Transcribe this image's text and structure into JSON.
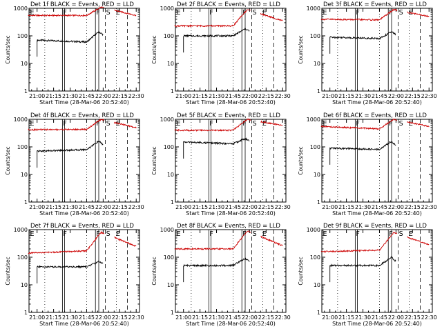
{
  "chart_data": [
    {
      "type": "line",
      "title": "Det 1f BLACK = Events, RED = LLD",
      "ylabel": "Counts/sec",
      "xlabel": "Start Time (28-Mar-06 20:52:40)",
      "x_ticks": [
        "21:00",
        "21:15",
        "21:30",
        "21:45",
        "22:00",
        "22:15",
        "22:30"
      ],
      "xlim": [
        "20:52:40",
        "22:33"
      ],
      "ylim": [
        1,
        1000
      ],
      "y_scale": "log",
      "y_ticks": [
        "1",
        "10",
        "100",
        "1000"
      ],
      "markers": [
        "E",
        "F",
        "F",
        "S",
        "E"
      ],
      "series": [
        {
          "name": "Events",
          "color": "#000000",
          "values": [
            {
              "x": "21:00",
              "y": 70
            },
            {
              "x": "21:45",
              "y": 60
            },
            {
              "x": "21:56",
              "y": 140
            },
            {
              "x": "22:00",
              "y": 110
            }
          ]
        },
        {
          "name": "LLD",
          "color": "#cc0000",
          "values": [
            {
              "x": "20:52",
              "y": 550
            },
            {
              "x": "21:45",
              "y": 550
            },
            {
              "x": "21:58",
              "y": 1100
            },
            {
              "x": "22:30",
              "y": 550
            }
          ]
        }
      ]
    },
    {
      "type": "line",
      "title": "Det 2f BLACK = Events, RED = LLD",
      "ylabel": "Counts/sec",
      "xlabel": "Start Time (28-Mar-06 20:52:40)",
      "x_ticks": [
        "21:00",
        "21:15",
        "21:30",
        "21:45",
        "22:00",
        "22:15",
        "22:30"
      ],
      "xlim": [
        "20:52:40",
        "22:33"
      ],
      "ylim": [
        1,
        1000
      ],
      "y_scale": "log",
      "y_ticks": [
        "1",
        "10",
        "100",
        "1000"
      ],
      "markers": [
        "E",
        "F",
        "F",
        "S",
        "E"
      ],
      "series": [
        {
          "name": "Events",
          "color": "#000000",
          "values": [
            {
              "x": "21:00",
              "y": 100
            },
            {
              "x": "21:45",
              "y": 100
            },
            {
              "x": "21:56",
              "y": 180
            },
            {
              "x": "22:00",
              "y": 150
            }
          ]
        },
        {
          "name": "LLD",
          "color": "#cc0000",
          "values": [
            {
              "x": "20:52",
              "y": 230
            },
            {
              "x": "21:45",
              "y": 230
            },
            {
              "x": "21:58",
              "y": 900
            },
            {
              "x": "22:30",
              "y": 350
            }
          ]
        }
      ]
    },
    {
      "type": "line",
      "title": "Det 3f BLACK = Events, RED = LLD",
      "ylabel": "Counts/sec",
      "xlabel": "Start Time (28-Mar-06 20:52:40)",
      "x_ticks": [
        "21:00",
        "21:15",
        "21:30",
        "21:45",
        "22:00",
        "22:15",
        "22:30"
      ],
      "xlim": [
        "20:52:40",
        "22:33"
      ],
      "ylim": [
        1,
        1000
      ],
      "y_scale": "log",
      "y_ticks": [
        "1",
        "10",
        "100",
        "1000"
      ],
      "markers": [
        "E",
        "F",
        "F",
        "S",
        "E"
      ],
      "series": [
        {
          "name": "Events",
          "color": "#000000",
          "values": [
            {
              "x": "21:00",
              "y": 90
            },
            {
              "x": "21:45",
              "y": 80
            },
            {
              "x": "21:56",
              "y": 140
            },
            {
              "x": "22:00",
              "y": 110
            }
          ]
        },
        {
          "name": "LLD",
          "color": "#cc0000",
          "values": [
            {
              "x": "20:52",
              "y": 400
            },
            {
              "x": "21:45",
              "y": 380
            },
            {
              "x": "21:58",
              "y": 900
            },
            {
              "x": "22:30",
              "y": 500
            }
          ]
        }
      ]
    },
    {
      "type": "line",
      "title": "Det 4f BLACK = Events, RED = LLD",
      "ylabel": "Counts/sec",
      "xlabel": "Start Time (28-Mar-06 20:52:40)",
      "x_ticks": [
        "21:00",
        "21:15",
        "21:30",
        "21:45",
        "22:00",
        "22:15",
        "22:30"
      ],
      "xlim": [
        "20:52:40",
        "22:33"
      ],
      "ylim": [
        1,
        1000
      ],
      "y_scale": "log",
      "y_ticks": [
        "1",
        "10",
        "100",
        "1000"
      ],
      "markers": [
        "E",
        "F",
        "F",
        "S",
        "E"
      ],
      "series": [
        {
          "name": "Events",
          "color": "#000000",
          "values": [
            {
              "x": "21:00",
              "y": 70
            },
            {
              "x": "21:45",
              "y": 80
            },
            {
              "x": "21:56",
              "y": 160
            },
            {
              "x": "22:00",
              "y": 120
            }
          ]
        },
        {
          "name": "LLD",
          "color": "#cc0000",
          "values": [
            {
              "x": "20:52",
              "y": 420
            },
            {
              "x": "21:45",
              "y": 430
            },
            {
              "x": "21:58",
              "y": 1000
            },
            {
              "x": "22:30",
              "y": 500
            }
          ]
        }
      ]
    },
    {
      "type": "line",
      "title": "Det 5f BLACK = Events, RED = LLD",
      "ylabel": "Counts/sec",
      "xlabel": "Start Time (28-Mar-06 20:52:40)",
      "x_ticks": [
        "21:00",
        "21:15",
        "21:30",
        "21:45",
        "22:00",
        "22:15",
        "22:30"
      ],
      "xlim": [
        "20:52:40",
        "22:33"
      ],
      "ylim": [
        1,
        1000
      ],
      "y_scale": "log",
      "y_ticks": [
        "1",
        "10",
        "100",
        "1000"
      ],
      "markers": [
        "E",
        "F",
        "F",
        "S",
        "E"
      ],
      "series": [
        {
          "name": "Events",
          "color": "#000000",
          "values": [
            {
              "x": "21:00",
              "y": 150
            },
            {
              "x": "21:45",
              "y": 130
            },
            {
              "x": "21:56",
              "y": 200
            },
            {
              "x": "22:00",
              "y": 160
            }
          ]
        },
        {
          "name": "LLD",
          "color": "#cc0000",
          "values": [
            {
              "x": "20:52",
              "y": 400
            },
            {
              "x": "21:45",
              "y": 400
            },
            {
              "x": "21:58",
              "y": 1000
            },
            {
              "x": "22:30",
              "y": 600
            }
          ]
        }
      ]
    },
    {
      "type": "line",
      "title": "Det 6f BLACK = Events, RED = LLD",
      "ylabel": "Counts/sec",
      "xlabel": "Start Time (28-Mar-06 20:52:40)",
      "x_ticks": [
        "21:00",
        "21:15",
        "21:30",
        "21:45",
        "22:00",
        "22:15",
        "22:30"
      ],
      "xlim": [
        "20:52:40",
        "22:33"
      ],
      "ylim": [
        1,
        1000
      ],
      "y_scale": "log",
      "y_ticks": [
        "1",
        "10",
        "100",
        "1000"
      ],
      "markers": [
        "E",
        "F",
        "F",
        "S",
        "E"
      ],
      "series": [
        {
          "name": "Events",
          "color": "#000000",
          "values": [
            {
              "x": "21:00",
              "y": 90
            },
            {
              "x": "21:45",
              "y": 80
            },
            {
              "x": "21:56",
              "y": 160
            },
            {
              "x": "22:00",
              "y": 110
            }
          ]
        },
        {
          "name": "LLD",
          "color": "#cc0000",
          "values": [
            {
              "x": "20:52",
              "y": 550
            },
            {
              "x": "21:45",
              "y": 450
            },
            {
              "x": "21:58",
              "y": 1000
            },
            {
              "x": "22:30",
              "y": 550
            }
          ]
        }
      ]
    },
    {
      "type": "line",
      "title": "Det 7f BLACK = Events, RED = LLD",
      "ylabel": "Counts/sec",
      "xlabel": "Start Time (28-Mar-06 20:52:40)",
      "x_ticks": [
        "21:00",
        "21:15",
        "21:30",
        "21:45",
        "22:00",
        "22:15",
        "22:30"
      ],
      "xlim": [
        "20:52:40",
        "22:33"
      ],
      "ylim": [
        1,
        1000
      ],
      "y_scale": "log",
      "y_ticks": [
        "1",
        "10",
        "100",
        "1000"
      ],
      "markers": [
        "E",
        "F",
        "F",
        "S",
        "E"
      ],
      "series": [
        {
          "name": "Events",
          "color": "#000000",
          "values": [
            {
              "x": "21:00",
              "y": 45
            },
            {
              "x": "21:45",
              "y": 45
            },
            {
              "x": "21:56",
              "y": 70
            },
            {
              "x": "22:00",
              "y": 60
            }
          ]
        },
        {
          "name": "LLD",
          "color": "#cc0000",
          "values": [
            {
              "x": "20:52",
              "y": 140
            },
            {
              "x": "21:45",
              "y": 170
            },
            {
              "x": "21:58",
              "y": 800
            },
            {
              "x": "22:30",
              "y": 250
            }
          ]
        }
      ]
    },
    {
      "type": "line",
      "title": "Det 8f BLACK = Events, RED = LLD",
      "ylabel": "Counts/sec",
      "xlabel": "Start Time (28-Mar-06 20:52:40)",
      "x_ticks": [
        "21:00",
        "21:15",
        "21:30",
        "21:45",
        "22:00",
        "22:15",
        "22:30"
      ],
      "xlim": [
        "20:52:40",
        "22:33"
      ],
      "ylim": [
        1,
        1000
      ],
      "y_scale": "log",
      "y_ticks": [
        "1",
        "10",
        "100",
        "1000"
      ],
      "markers": [
        "E",
        "F",
        "F",
        "S",
        "E"
      ],
      "series": [
        {
          "name": "Events",
          "color": "#000000",
          "values": [
            {
              "x": "21:00",
              "y": 50
            },
            {
              "x": "21:45",
              "y": 50
            },
            {
              "x": "21:56",
              "y": 90
            },
            {
              "x": "22:00",
              "y": 70
            }
          ]
        },
        {
          "name": "LLD",
          "color": "#cc0000",
          "values": [
            {
              "x": "20:52",
              "y": 200
            },
            {
              "x": "21:45",
              "y": 200
            },
            {
              "x": "21:58",
              "y": 900
            },
            {
              "x": "22:30",
              "y": 260
            }
          ]
        }
      ]
    },
    {
      "type": "line",
      "title": "Det 9f BLACK = Events, RED = LLD",
      "ylabel": "Counts/sec",
      "xlabel": "Start Time (28-Mar-06 20:52:40)",
      "x_ticks": [
        "21:00",
        "21:15",
        "21:30",
        "21:45",
        "22:00",
        "22:15",
        "22:30"
      ],
      "xlim": [
        "20:52:40",
        "22:33"
      ],
      "ylim": [
        1,
        1000
      ],
      "y_scale": "log",
      "y_ticks": [
        "1",
        "10",
        "100",
        "1000"
      ],
      "markers": [
        "E",
        "F",
        "F",
        "S",
        "E"
      ],
      "series": [
        {
          "name": "Events",
          "color": "#000000",
          "values": [
            {
              "x": "21:00",
              "y": 50
            },
            {
              "x": "21:45",
              "y": 50
            },
            {
              "x": "21:56",
              "y": 100
            },
            {
              "x": "22:00",
              "y": 70
            }
          ]
        },
        {
          "name": "LLD",
          "color": "#cc0000",
          "values": [
            {
              "x": "20:52",
              "y": 160
            },
            {
              "x": "21:45",
              "y": 180
            },
            {
              "x": "21:58",
              "y": 800
            },
            {
              "x": "22:30",
              "y": 280
            }
          ]
        }
      ]
    }
  ]
}
